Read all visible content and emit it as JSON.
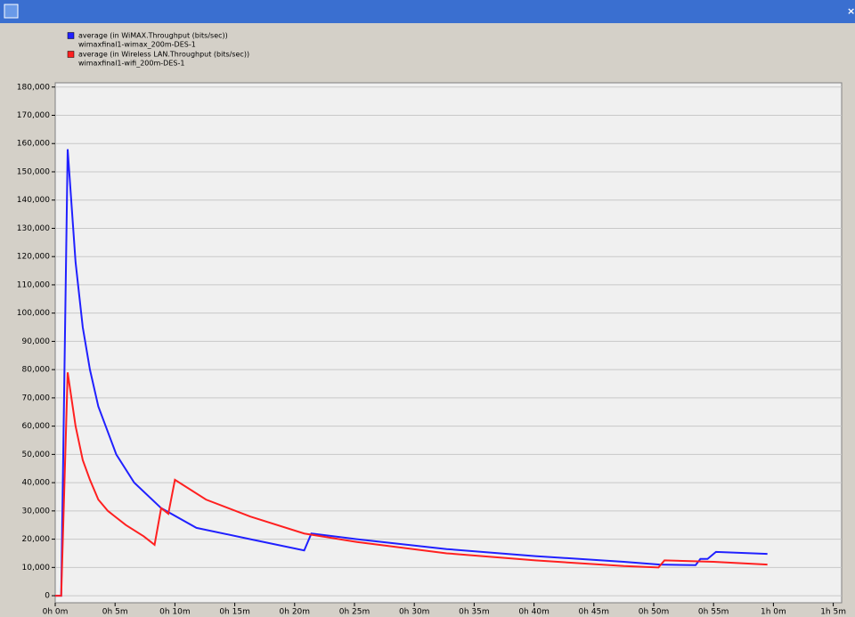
{
  "chart_data": {
    "type": "line",
    "series": [
      {
        "name": "average (in WiMAX.Throughput (bits/sec))",
        "scenario": "wimaxfinal1-wimax_200m-DES-1",
        "color": "#2020ff",
        "x": [
          0,
          0.5,
          1.04,
          1.7,
          2.3,
          2.9,
          3.6,
          5.1,
          6.6,
          8.85,
          11.8,
          16.3,
          20.8,
          21.4,
          25.2,
          32.7,
          40.1,
          47.5,
          50.5,
          53.5,
          53.9,
          54.5,
          55.2,
          59.5
        ],
        "values": [
          0,
          0,
          158000,
          118000,
          95000,
          80000,
          67000,
          50000,
          40000,
          31000,
          24000,
          20000,
          16000,
          22000,
          20000,
          16500,
          14000,
          12000,
          11000,
          10800,
          13000,
          13000,
          15500,
          14800
        ]
      },
      {
        "name": "average (in Wireless LAN.Throughput (bits/sec))",
        "scenario": "wimaxfinal1-wifi_200m-DES-1",
        "color": "#ff2020",
        "x": [
          0,
          0.5,
          1.04,
          1.7,
          2.3,
          2.9,
          3.6,
          4.4,
          5.9,
          7.4,
          8.3,
          8.85,
          9.45,
          10.0,
          12.6,
          16.3,
          20.8,
          25.2,
          32.7,
          40.1,
          47.5,
          50.4,
          50.9,
          55.0,
          59.5
        ],
        "values": [
          0,
          0,
          79000,
          60000,
          48000,
          41000,
          34000,
          30000,
          25000,
          21000,
          18000,
          31000,
          29000,
          41000,
          34000,
          28000,
          22000,
          19000,
          15000,
          12500,
          10500,
          10000,
          12500,
          12000,
          11000
        ]
      }
    ],
    "xlim": [
      0,
      65.7
    ],
    "ylim": [
      -2500,
      181500
    ],
    "xticks": [
      {
        "value": 0,
        "label": "0h 0m"
      },
      {
        "value": 5,
        "label": "0h 5m"
      },
      {
        "value": 10,
        "label": "0h 10m"
      },
      {
        "value": 15,
        "label": "0h 15m"
      },
      {
        "value": 20,
        "label": "0h 20m"
      },
      {
        "value": 25,
        "label": "0h 25m"
      },
      {
        "value": 30,
        "label": "0h 30m"
      },
      {
        "value": 35,
        "label": "0h 35m"
      },
      {
        "value": 40,
        "label": "0h 40m"
      },
      {
        "value": 45,
        "label": "0h 45m"
      },
      {
        "value": 50,
        "label": "0h 50m"
      },
      {
        "value": 55,
        "label": "0h 55m"
      },
      {
        "value": 60,
        "label": "1h 0m"
      },
      {
        "value": 65,
        "label": "1h 5m"
      }
    ],
    "yticks": [
      0,
      {
        "value": 10000,
        "label": "10,000"
      },
      {
        "value": 20000,
        "label": "20,000"
      },
      {
        "value": 30000,
        "label": "30,000"
      },
      {
        "value": 40000,
        "label": "40,000"
      },
      {
        "value": 50000,
        "label": "50,000"
      },
      {
        "value": 60000,
        "label": "60,000"
      },
      {
        "value": 70000,
        "label": "70,000"
      },
      {
        "value": 80000,
        "label": "80,000"
      },
      {
        "value": 90000,
        "label": "90,000"
      },
      {
        "value": 100000,
        "label": "100,000"
      },
      {
        "value": 110000,
        "label": "110,000"
      },
      {
        "value": 120000,
        "label": "120,000"
      },
      {
        "value": 130000,
        "label": "130,000"
      },
      {
        "value": 140000,
        "label": "140,000"
      },
      {
        "value": 150000,
        "label": "150,000"
      },
      {
        "value": 160000,
        "label": "160,000"
      },
      {
        "value": 170000,
        "label": "170,000"
      },
      {
        "value": 180000,
        "label": "180,000"
      }
    ],
    "grid": true
  }
}
